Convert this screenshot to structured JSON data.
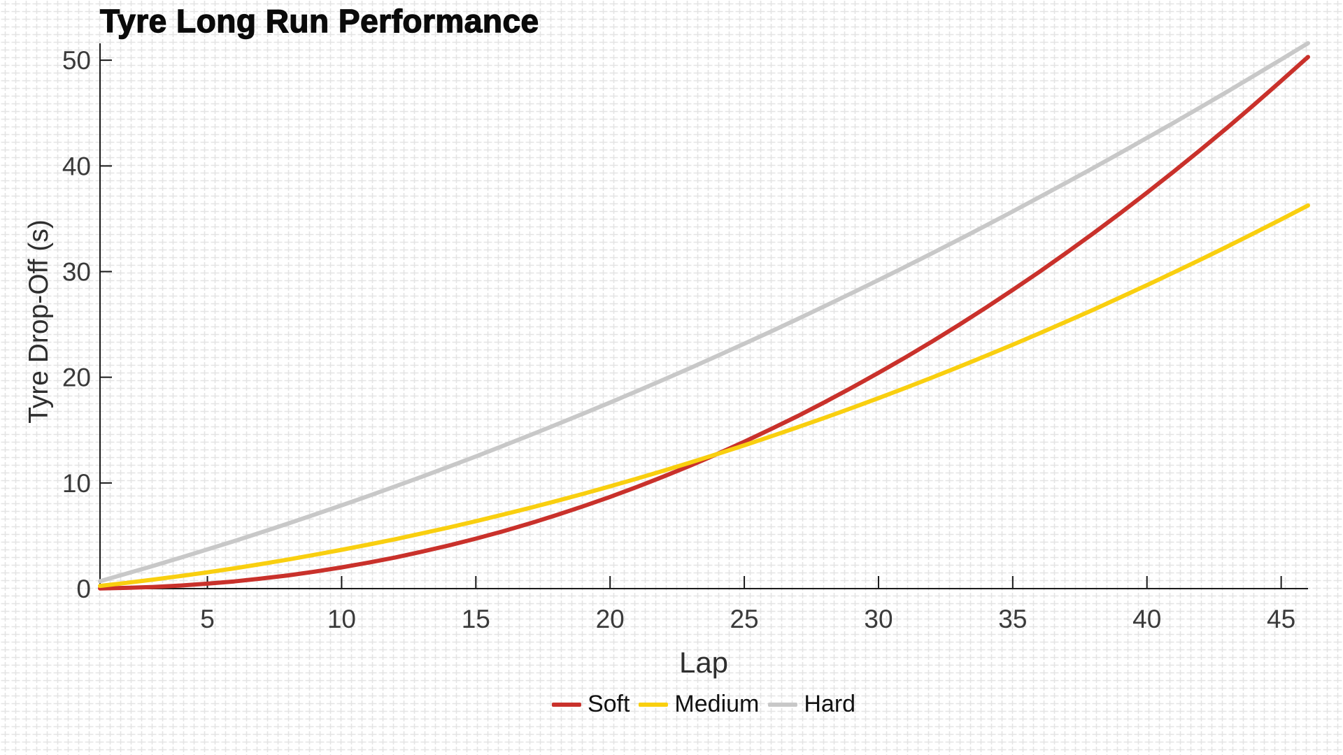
{
  "page": {
    "background_pattern": "light-gray plus-cross graph paper",
    "background_pattern_color": "#e4e4e4",
    "background_color": "#ffffff"
  },
  "chart_data": {
    "type": "line",
    "title": "Tyre Long Run Performance",
    "xlabel": "Lap",
    "ylabel": "Tyre Drop-Off (s)",
    "xlim": [
      1,
      46
    ],
    "ylim": [
      0,
      51.6
    ],
    "x_ticks": [
      5,
      10,
      15,
      20,
      25,
      30,
      35,
      40,
      45
    ],
    "y_ticks": [
      0,
      10,
      20,
      30,
      40,
      50
    ],
    "grid": "off (textured plus-pattern page background only)",
    "legend_position": "bottom-center",
    "axis_color": "#1a1a1a",
    "tick_label_color": "#3a3a3a",
    "x": [
      1,
      2,
      3,
      4,
      5,
      6,
      7,
      8,
      9,
      10,
      11,
      12,
      13,
      14,
      15,
      16,
      17,
      18,
      19,
      20,
      21,
      22,
      23,
      24,
      25,
      26,
      27,
      28,
      29,
      30,
      31,
      32,
      33,
      34,
      35,
      36,
      37,
      38,
      39,
      40,
      41,
      42,
      43,
      44,
      45,
      46
    ],
    "series": [
      {
        "name": "Soft",
        "color": "#c9312b",
        "values": [
          0.02,
          0.07,
          0.16,
          0.29,
          0.47,
          0.68,
          0.95,
          1.25,
          1.61,
          2.01,
          2.46,
          2.95,
          3.5,
          4.09,
          4.73,
          5.42,
          6.16,
          6.95,
          7.79,
          8.68,
          9.62,
          10.61,
          11.65,
          12.75,
          13.9,
          15.1,
          16.34,
          17.65,
          19.01,
          20.42,
          21.88,
          23.39,
          24.96,
          26.59,
          28.26,
          29.99,
          31.78,
          33.62,
          35.52,
          37.47,
          39.47,
          41.53,
          43.64,
          45.81,
          48.04,
          50.31
        ]
      },
      {
        "name": "Medium",
        "color": "#f9cf0f",
        "values": [
          0.26,
          0.55,
          0.86,
          1.19,
          1.54,
          1.92,
          2.32,
          2.75,
          3.2,
          3.67,
          4.17,
          4.68,
          5.23,
          5.79,
          6.38,
          7.0,
          7.63,
          8.29,
          8.97,
          9.68,
          10.41,
          11.16,
          11.94,
          12.74,
          13.56,
          14.41,
          15.28,
          16.17,
          17.09,
          18.03,
          18.99,
          19.98,
          20.99,
          22.03,
          23.08,
          24.16,
          25.27,
          26.39,
          27.55,
          28.72,
          29.92,
          31.14,
          32.38,
          33.65,
          34.94,
          36.26
        ]
      },
      {
        "name": "Hard",
        "color": "#c8c8c8",
        "values": [
          0.7,
          1.43,
          2.17,
          2.93,
          3.71,
          4.5,
          5.32,
          6.15,
          7.01,
          7.88,
          8.77,
          9.68,
          10.6,
          11.55,
          12.51,
          13.5,
          14.5,
          15.52,
          16.56,
          17.61,
          18.69,
          19.78,
          20.89,
          22.03,
          23.18,
          24.34,
          25.53,
          26.74,
          27.96,
          29.2,
          30.46,
          31.74,
          33.04,
          34.36,
          35.69,
          37.05,
          38.42,
          39.81,
          41.22,
          42.65,
          44.09,
          45.56,
          47.04,
          48.55,
          50.07,
          51.61
        ]
      }
    ]
  }
}
